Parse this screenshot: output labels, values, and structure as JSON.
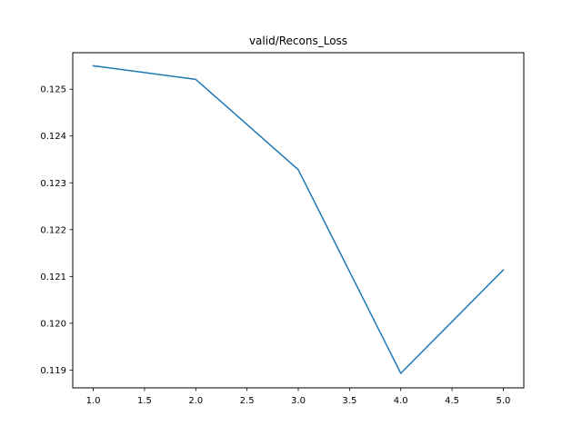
{
  "chart_data": {
    "type": "line",
    "title": "valid/Recons_Loss",
    "xlabel": "",
    "ylabel": "",
    "xlim": [
      0.8,
      5.2
    ],
    "ylim": [
      0.11862,
      0.12578
    ],
    "x_ticks": [
      1.0,
      1.5,
      2.0,
      2.5,
      3.0,
      3.5,
      4.0,
      4.5,
      5.0
    ],
    "x_tick_labels": [
      "1.0",
      "1.5",
      "2.0",
      "2.5",
      "3.0",
      "3.5",
      "4.0",
      "4.5",
      "5.0"
    ],
    "y_ticks": [
      0.119,
      0.12,
      0.121,
      0.122,
      0.123,
      0.124,
      0.125
    ],
    "y_tick_labels": [
      "0.119",
      "0.120",
      "0.121",
      "0.122",
      "0.123",
      "0.124",
      "0.125"
    ],
    "grid": false,
    "series": [
      {
        "x": [
          1,
          2,
          3,
          4,
          5
        ],
        "values": [
          0.1255,
          0.12521,
          0.12328,
          0.11893,
          0.12114
        ],
        "color": "#1f77b4"
      }
    ]
  }
}
